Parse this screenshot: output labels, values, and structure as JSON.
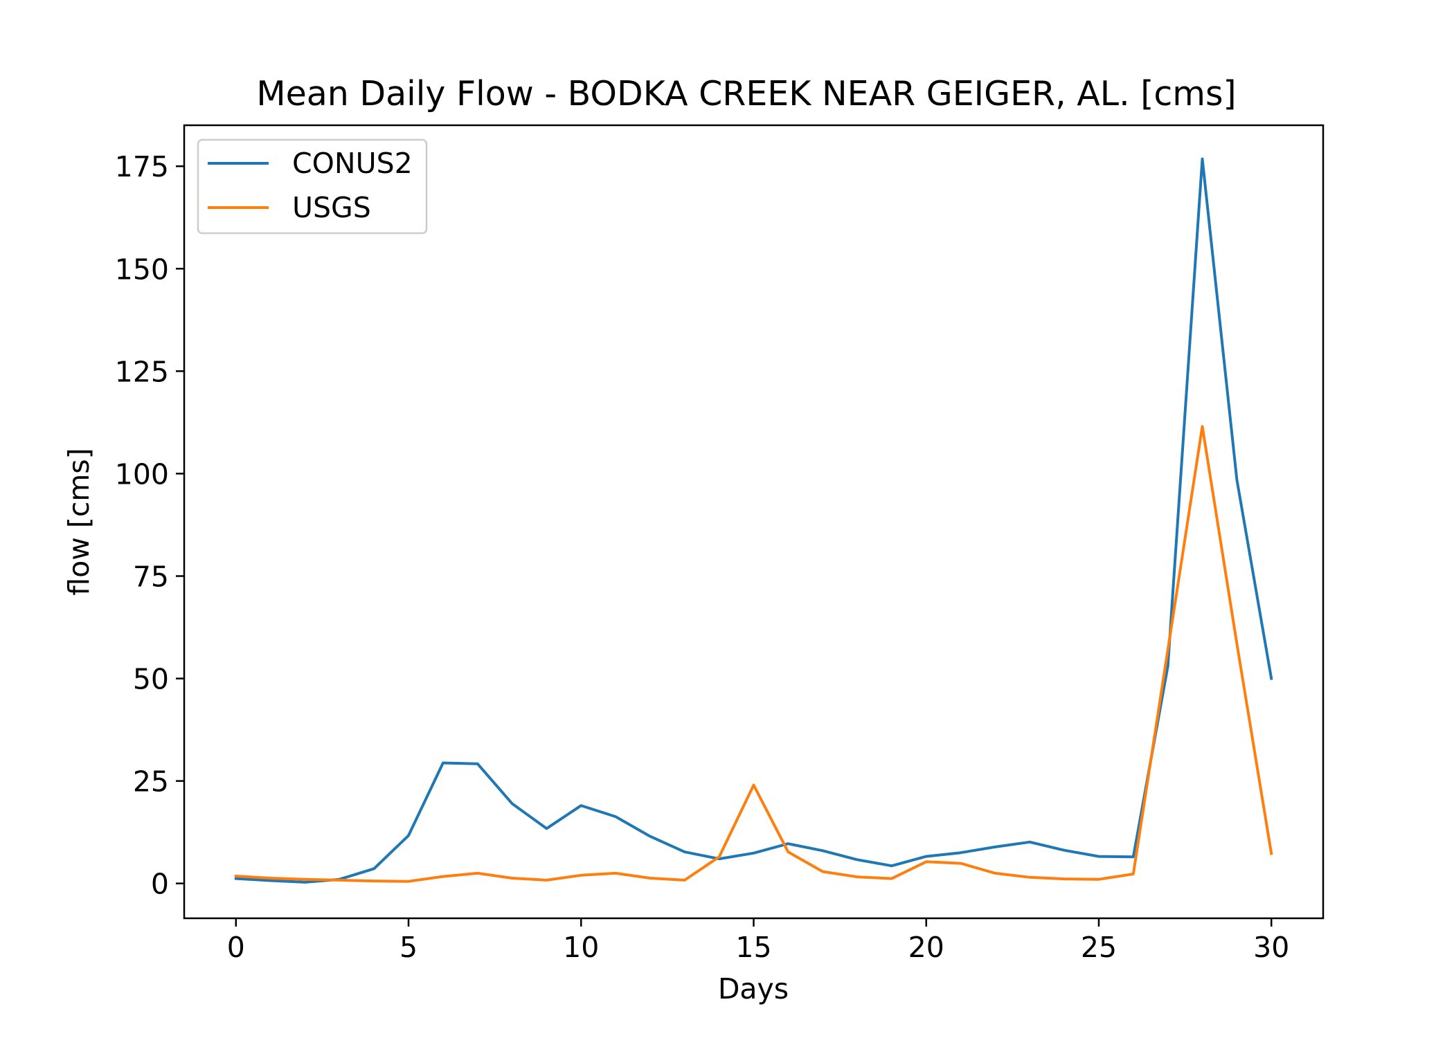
{
  "chart_data": {
    "type": "line",
    "title": "Mean Daily Flow - BODKA CREEK NEAR GEIGER, AL. [cms]",
    "xlabel": "Days",
    "ylabel": "flow [cms]",
    "xlim": [
      -1.5,
      31.5
    ],
    "ylim": [
      -8.5,
      185
    ],
    "xticks": [
      0,
      5,
      10,
      15,
      20,
      25,
      30
    ],
    "yticks": [
      0,
      25,
      50,
      75,
      100,
      125,
      150,
      175
    ],
    "grid": false,
    "legend_position": "top-left",
    "x": [
      0,
      1,
      2,
      3,
      4,
      5,
      6,
      7,
      8,
      9,
      10,
      11,
      12,
      13,
      14,
      15,
      16,
      17,
      18,
      19,
      20,
      21,
      22,
      23,
      24,
      25,
      26,
      27,
      28,
      29,
      30
    ],
    "series": [
      {
        "name": "CONUS2",
        "color": "#1f77b4",
        "values": [
          1.2,
          0.7,
          0.3,
          1.0,
          3.6,
          11.7,
          29.4,
          29.2,
          19.5,
          13.4,
          19.0,
          16.3,
          11.5,
          7.7,
          6.0,
          7.4,
          9.7,
          8.0,
          5.8,
          4.3,
          6.6,
          7.5,
          8.9,
          10.1,
          8.1,
          6.6,
          6.5,
          53.0,
          176.8,
          98.5,
          50.0
        ]
      },
      {
        "name": "USGS",
        "color": "#ff7f0e",
        "values": [
          1.8,
          1.3,
          1.0,
          0.8,
          0.6,
          0.5,
          1.7,
          2.5,
          1.3,
          0.8,
          2.0,
          2.5,
          1.3,
          0.8,
          6.5,
          24.0,
          7.7,
          2.9,
          1.6,
          1.2,
          5.3,
          4.9,
          2.5,
          1.5,
          1.1,
          1.0,
          2.3,
          57.0,
          111.5,
          58.5,
          7.3
        ]
      }
    ]
  }
}
